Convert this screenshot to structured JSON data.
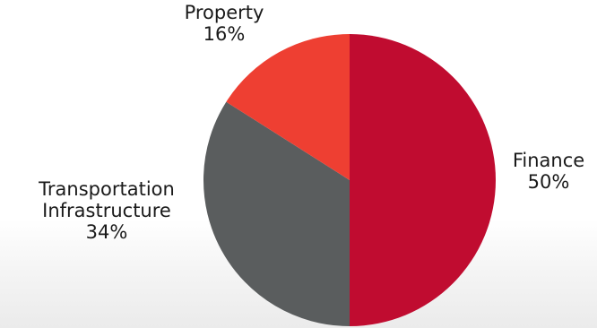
{
  "chart_data": {
    "type": "pie",
    "title": "",
    "start_angle_deg": 0,
    "direction": "clockwise",
    "legend": "none",
    "slices": [
      {
        "key": "finance",
        "label_lines": [
          "Finance"
        ],
        "value": 50,
        "value_label": "50%",
        "color": "#c00c30"
      },
      {
        "key": "transportation-infrastructure",
        "label_lines": [
          "Transportation",
          "Infrastructure"
        ],
        "value": 34,
        "value_label": "34%",
        "color": "#5a5d5e"
      },
      {
        "key": "property",
        "label_lines": [
          "Property"
        ],
        "value": 16,
        "value_label": "16%",
        "color": "#ee3f32"
      }
    ]
  }
}
